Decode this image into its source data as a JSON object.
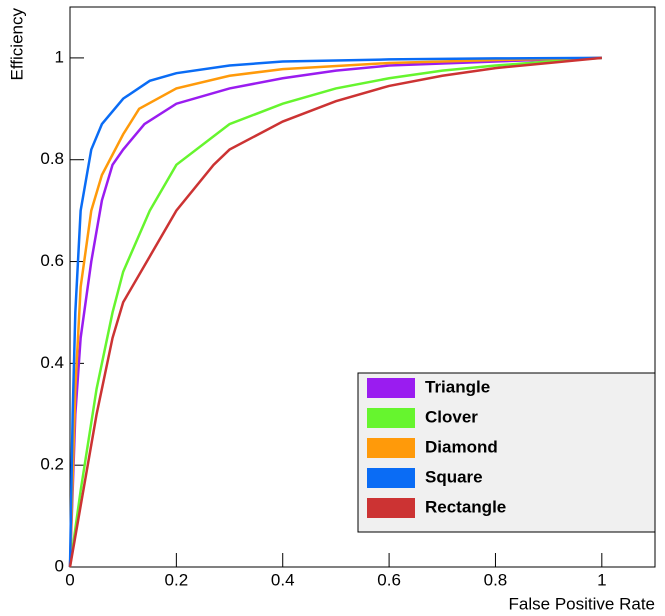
{
  "chart_data": {
    "type": "line",
    "xlabel": "False Positive Rate",
    "ylabel": "Efficiency",
    "xlim": [
      0,
      1.1
    ],
    "ylim": [
      0,
      1.1
    ],
    "xticks": [
      0,
      0.2,
      0.4,
      0.6,
      0.8,
      1
    ],
    "yticks": [
      0,
      0.2,
      0.4,
      0.6,
      0.8,
      1
    ],
    "legend": "lower-right",
    "series": [
      {
        "name": "Triangle",
        "color": "#9a1cf0",
        "x": [
          0,
          0.01,
          0.02,
          0.04,
          0.06,
          0.08,
          0.1,
          0.14,
          0.2,
          0.3,
          0.4,
          0.5,
          0.6,
          0.8,
          1
        ],
        "values": [
          0,
          0.3,
          0.45,
          0.6,
          0.72,
          0.79,
          0.82,
          0.87,
          0.91,
          0.94,
          0.96,
          0.975,
          0.985,
          0.993,
          1
        ]
      },
      {
        "name": "Clover",
        "color": "#66f52e",
        "x": [
          0,
          0.02,
          0.05,
          0.08,
          0.1,
          0.15,
          0.2,
          0.3,
          0.4,
          0.5,
          0.6,
          0.7,
          0.8,
          0.9,
          1
        ],
        "values": [
          0,
          0.15,
          0.35,
          0.5,
          0.58,
          0.7,
          0.79,
          0.87,
          0.91,
          0.94,
          0.96,
          0.975,
          0.985,
          0.993,
          1
        ]
      },
      {
        "name": "Diamond",
        "color": "#ff9a0a",
        "x": [
          0,
          0.01,
          0.02,
          0.04,
          0.06,
          0.1,
          0.13,
          0.2,
          0.3,
          0.4,
          0.6,
          0.8,
          1
        ],
        "values": [
          0,
          0.35,
          0.55,
          0.7,
          0.77,
          0.85,
          0.9,
          0.94,
          0.965,
          0.978,
          0.99,
          0.996,
          1
        ]
      },
      {
        "name": "Square",
        "color": "#0a6cf5",
        "x": [
          0,
          0.005,
          0.01,
          0.02,
          0.04,
          0.06,
          0.1,
          0.15,
          0.2,
          0.3,
          0.4,
          0.6,
          0.8,
          1
        ],
        "values": [
          0,
          0.3,
          0.5,
          0.7,
          0.82,
          0.87,
          0.92,
          0.955,
          0.97,
          0.985,
          0.993,
          0.997,
          0.999,
          1
        ]
      },
      {
        "name": "Rectangle",
        "color": "#cc3333",
        "x": [
          0,
          0.02,
          0.05,
          0.08,
          0.1,
          0.15,
          0.2,
          0.27,
          0.3,
          0.4,
          0.5,
          0.6,
          0.7,
          0.8,
          0.9,
          1
        ],
        "values": [
          0,
          0.12,
          0.3,
          0.45,
          0.52,
          0.61,
          0.7,
          0.79,
          0.82,
          0.875,
          0.915,
          0.945,
          0.965,
          0.98,
          0.99,
          1
        ]
      }
    ]
  }
}
